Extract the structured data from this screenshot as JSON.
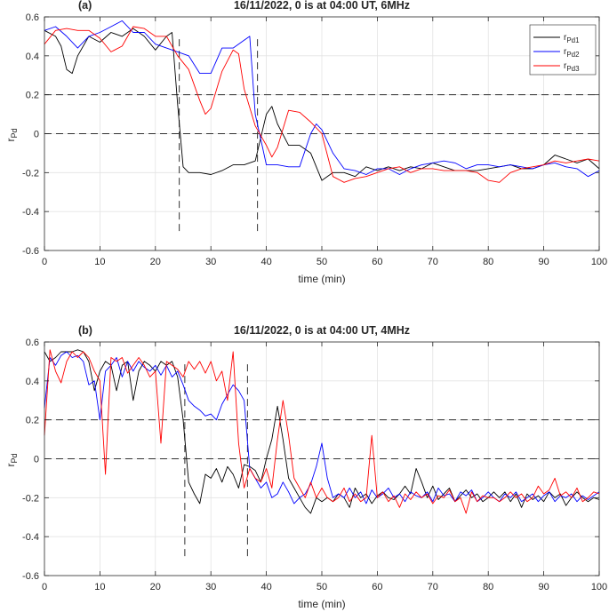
{
  "figure": {
    "panel_tags": [
      "(a)",
      "(b)"
    ]
  },
  "chart_data": [
    {
      "type": "line",
      "title": "16/11/2022, 0 is at 04:00 UT, 6MHz",
      "xlabel": "time (min)",
      "ylabel_main": "r",
      "ylabel_sub": "Pd",
      "xlim": [
        0,
        100
      ],
      "ylim": [
        -0.6,
        0.6
      ],
      "xticks": [
        0,
        10,
        20,
        30,
        40,
        50,
        60,
        70,
        80,
        90,
        100
      ],
      "yticks": [
        -0.6,
        -0.4,
        -0.2,
        0,
        0.2,
        0.4,
        0.6
      ],
      "grid": true,
      "legend": "top-right",
      "legend_entries": [
        {
          "main": "r",
          "sub": "Pd1",
          "color": "#000000"
        },
        {
          "main": "r",
          "sub": "Pd2",
          "color": "#0000ff"
        },
        {
          "main": "r",
          "sub": "Pd3",
          "color": "#ff0000"
        }
      ],
      "hlines": [
        0.2,
        0.0
      ],
      "vlines": [
        {
          "x": 24.3,
          "y": [
            -0.5,
            0.5
          ]
        },
        {
          "x": 38.4,
          "y": [
            -0.5,
            0.5
          ]
        }
      ],
      "series": [
        {
          "name": "Pd1",
          "color": "#000000",
          "x": [
            0,
            2,
            3,
            4,
            5,
            6,
            8,
            10,
            12,
            14,
            16,
            18,
            20,
            22,
            23,
            24,
            25,
            26,
            28,
            30,
            32,
            34,
            36,
            38,
            40,
            41,
            42,
            44,
            46,
            48,
            50,
            52,
            54,
            56,
            58,
            60,
            62,
            64,
            66,
            68,
            70,
            72,
            74,
            76,
            78,
            80,
            82,
            84,
            86,
            88,
            90,
            92,
            94,
            96,
            98,
            100
          ],
          "y": [
            0.53,
            0.5,
            0.45,
            0.33,
            0.31,
            0.4,
            0.5,
            0.47,
            0.52,
            0.5,
            0.54,
            0.5,
            0.43,
            0.5,
            0.52,
            0.15,
            -0.17,
            -0.2,
            -0.2,
            -0.21,
            -0.19,
            -0.16,
            -0.16,
            -0.14,
            0.1,
            0.14,
            0.05,
            -0.06,
            -0.06,
            -0.1,
            -0.24,
            -0.2,
            -0.2,
            -0.22,
            -0.17,
            -0.19,
            -0.17,
            -0.19,
            -0.17,
            -0.18,
            -0.15,
            -0.17,
            -0.19,
            -0.19,
            -0.19,
            -0.18,
            -0.17,
            -0.16,
            -0.18,
            -0.18,
            -0.16,
            -0.11,
            -0.13,
            -0.15,
            -0.13,
            -0.18
          ]
        },
        {
          "name": "Pd2",
          "color": "#0000ff",
          "x": [
            0,
            2,
            4,
            6,
            8,
            10,
            12,
            14,
            16,
            18,
            20,
            22,
            24,
            26,
            28,
            30,
            32,
            34,
            36,
            37,
            38,
            39,
            40,
            42,
            44,
            46,
            48,
            49,
            50,
            52,
            54,
            56,
            58,
            60,
            62,
            64,
            66,
            68,
            70,
            72,
            74,
            76,
            78,
            80,
            82,
            84,
            86,
            88,
            90,
            92,
            94,
            96,
            98,
            100
          ],
          "y": [
            0.53,
            0.55,
            0.5,
            0.44,
            0.5,
            0.52,
            0.55,
            0.58,
            0.52,
            0.52,
            0.46,
            0.44,
            0.42,
            0.4,
            0.31,
            0.31,
            0.44,
            0.44,
            0.48,
            0.5,
            0.1,
            -0.03,
            -0.16,
            -0.16,
            -0.17,
            -0.17,
            0.0,
            0.05,
            0.02,
            -0.1,
            -0.18,
            -0.19,
            -0.21,
            -0.18,
            -0.18,
            -0.21,
            -0.18,
            -0.16,
            -0.15,
            -0.14,
            -0.15,
            -0.18,
            -0.16,
            -0.16,
            -0.17,
            -0.16,
            -0.17,
            -0.18,
            -0.16,
            -0.15,
            -0.17,
            -0.18,
            -0.22,
            -0.19
          ]
        },
        {
          "name": "Pd3",
          "color": "#ff0000",
          "x": [
            0,
            2,
            4,
            6,
            8,
            10,
            12,
            14,
            16,
            18,
            20,
            22,
            24,
            26,
            28,
            29,
            30,
            32,
            34,
            35,
            36,
            38,
            39,
            40,
            41,
            42,
            44,
            46,
            48,
            50,
            52,
            54,
            56,
            58,
            60,
            62,
            64,
            66,
            68,
            70,
            72,
            74,
            76,
            78,
            80,
            82,
            84,
            86,
            88,
            90,
            92,
            94,
            96,
            98,
            100
          ],
          "y": [
            0.46,
            0.53,
            0.54,
            0.53,
            0.53,
            0.49,
            0.42,
            0.45,
            0.55,
            0.54,
            0.5,
            0.5,
            0.4,
            0.33,
            0.17,
            0.1,
            0.13,
            0.32,
            0.43,
            0.41,
            0.23,
            0.04,
            -0.01,
            -0.06,
            -0.12,
            -0.07,
            0.12,
            0.11,
            0.06,
            0.0,
            -0.22,
            -0.25,
            -0.23,
            -0.22,
            -0.2,
            -0.18,
            -0.17,
            -0.2,
            -0.18,
            -0.18,
            -0.19,
            -0.19,
            -0.19,
            -0.2,
            -0.24,
            -0.25,
            -0.2,
            -0.18,
            -0.17,
            -0.16,
            -0.14,
            -0.15,
            -0.14,
            -0.13,
            -0.14
          ]
        }
      ]
    },
    {
      "type": "line",
      "title": "16/11/2022, 0 is at 04:00 UT, 4MHz",
      "xlabel": "time (min)",
      "ylabel_main": "r",
      "ylabel_sub": "Pd",
      "xlim": [
        0,
        100
      ],
      "ylim": [
        -0.6,
        0.6
      ],
      "xticks": [
        0,
        10,
        20,
        30,
        40,
        50,
        60,
        70,
        80,
        90,
        100
      ],
      "yticks": [
        -0.6,
        -0.4,
        -0.2,
        0,
        0.2,
        0.4,
        0.6
      ],
      "grid": true,
      "hlines": [
        0.2,
        0.0
      ],
      "vlines": [
        {
          "x": 25.3,
          "y": [
            -0.5,
            0.5
          ]
        },
        {
          "x": 36.6,
          "y": [
            -0.5,
            0.5
          ]
        }
      ],
      "series": [
        {
          "name": "Pd1",
          "color": "#000000",
          "x": [
            0,
            1,
            2,
            3,
            4,
            5,
            6,
            7,
            8,
            9,
            10,
            11,
            12,
            13,
            14,
            15,
            16,
            17,
            18,
            19,
            20,
            21,
            22,
            23,
            24,
            25,
            26,
            27,
            28,
            29,
            30,
            31,
            32,
            33,
            34,
            35,
            36,
            37,
            38,
            39,
            40,
            41,
            42,
            43,
            44,
            45,
            46,
            47,
            48,
            49,
            50,
            51,
            52,
            53,
            54,
            55,
            56,
            57,
            58,
            59,
            60,
            61,
            62,
            63,
            64,
            65,
            66,
            67,
            68,
            69,
            70,
            71,
            72,
            73,
            74,
            75,
            76,
            77,
            78,
            79,
            80,
            81,
            82,
            83,
            84,
            85,
            86,
            87,
            88,
            89,
            90,
            91,
            92,
            93,
            94,
            95,
            96,
            97,
            98,
            99,
            100
          ],
          "y": [
            0.55,
            0.5,
            0.52,
            0.55,
            0.55,
            0.55,
            0.56,
            0.55,
            0.5,
            0.35,
            0.45,
            0.5,
            0.48,
            0.35,
            0.48,
            0.5,
            0.3,
            0.45,
            0.5,
            0.48,
            0.45,
            0.5,
            0.48,
            0.5,
            0.42,
            0.2,
            -0.12,
            -0.18,
            -0.23,
            -0.08,
            -0.1,
            -0.05,
            -0.12,
            -0.04,
            -0.08,
            -0.15,
            -0.03,
            -0.04,
            -0.06,
            -0.12,
            0.0,
            0.1,
            0.27,
            0.1,
            -0.1,
            -0.15,
            -0.2,
            -0.25,
            -0.28,
            -0.2,
            -0.22,
            -0.2,
            -0.22,
            -0.18,
            -0.2,
            -0.25,
            -0.15,
            -0.2,
            -0.18,
            -0.23,
            -0.19,
            -0.17,
            -0.2,
            -0.21,
            -0.18,
            -0.14,
            -0.18,
            -0.05,
            -0.12,
            -0.2,
            -0.14,
            -0.21,
            -0.18,
            -0.15,
            -0.22,
            -0.19,
            -0.16,
            -0.2,
            -0.18,
            -0.22,
            -0.2,
            -0.17,
            -0.2,
            -0.17,
            -0.22,
            -0.18,
            -0.25,
            -0.18,
            -0.21,
            -0.19,
            -0.22,
            -0.17,
            -0.2,
            -0.18,
            -0.24,
            -0.2,
            -0.17,
            -0.2,
            -0.22,
            -0.2,
            -0.21
          ]
        },
        {
          "name": "Pd2",
          "color": "#0000ff",
          "x": [
            0,
            1,
            2,
            3,
            4,
            5,
            6,
            7,
            8,
            9,
            10,
            11,
            12,
            13,
            14,
            15,
            16,
            17,
            18,
            19,
            20,
            21,
            22,
            23,
            24,
            25,
            26,
            27,
            28,
            29,
            30,
            31,
            32,
            33,
            34,
            35,
            36,
            37,
            38,
            39,
            40,
            41,
            42,
            43,
            44,
            45,
            46,
            47,
            48,
            49,
            50,
            51,
            52,
            53,
            54,
            55,
            56,
            57,
            58,
            59,
            60,
            61,
            62,
            63,
            64,
            65,
            66,
            67,
            68,
            69,
            70,
            71,
            72,
            73,
            74,
            75,
            76,
            77,
            78,
            79,
            80,
            81,
            82,
            83,
            84,
            85,
            86,
            87,
            88,
            89,
            90,
            91,
            92,
            93,
            94,
            95,
            96,
            97,
            98,
            99,
            100
          ],
          "y": [
            0.26,
            0.52,
            0.48,
            0.53,
            0.55,
            0.52,
            0.53,
            0.5,
            0.38,
            0.4,
            0.2,
            0.45,
            0.48,
            0.52,
            0.42,
            0.5,
            0.45,
            0.5,
            0.47,
            0.45,
            0.48,
            0.43,
            0.48,
            0.42,
            0.45,
            0.38,
            0.3,
            0.27,
            0.25,
            0.22,
            0.23,
            0.2,
            0.28,
            0.33,
            0.38,
            0.35,
            0.3,
            -0.05,
            -0.1,
            -0.15,
            -0.12,
            -0.2,
            -0.18,
            -0.12,
            -0.17,
            -0.23,
            -0.2,
            -0.18,
            -0.13,
            -0.04,
            0.08,
            -0.1,
            -0.2,
            -0.18,
            -0.2,
            -0.15,
            -0.2,
            -0.17,
            -0.23,
            -0.16,
            -0.2,
            -0.18,
            -0.15,
            -0.2,
            -0.18,
            -0.22,
            -0.17,
            -0.19,
            -0.2,
            -0.17,
            -0.22,
            -0.15,
            -0.19,
            -0.18,
            -0.22,
            -0.17,
            -0.19,
            -0.16,
            -0.22,
            -0.2,
            -0.17,
            -0.2,
            -0.22,
            -0.18,
            -0.2,
            -0.17,
            -0.22,
            -0.2,
            -0.18,
            -0.22,
            -0.19,
            -0.17,
            -0.22,
            -0.19,
            -0.2,
            -0.18,
            -0.22,
            -0.19,
            -0.21,
            -0.19,
            -0.17
          ]
        },
        {
          "name": "Pd3",
          "color": "#ff0000",
          "x": [
            0,
            1,
            2,
            3,
            4,
            5,
            6,
            7,
            8,
            9,
            10,
            11,
            12,
            13,
            14,
            15,
            16,
            17,
            18,
            19,
            20,
            21,
            22,
            23,
            24,
            25,
            26,
            27,
            28,
            29,
            30,
            31,
            32,
            33,
            34,
            35,
            36,
            37,
            38,
            39,
            40,
            41,
            42,
            43,
            44,
            45,
            46,
            47,
            48,
            49,
            50,
            51,
            52,
            53,
            54,
            55,
            56,
            57,
            58,
            59,
            60,
            61,
            62,
            63,
            64,
            65,
            66,
            67,
            68,
            69,
            70,
            71,
            72,
            73,
            74,
            75,
            76,
            77,
            78,
            79,
            80,
            81,
            82,
            83,
            84,
            85,
            86,
            87,
            88,
            89,
            90,
            91,
            92,
            93,
            94,
            95,
            96,
            97,
            98,
            99,
            100
          ],
          "y": [
            0.12,
            0.56,
            0.45,
            0.39,
            0.5,
            0.55,
            0.52,
            0.55,
            0.52,
            0.45,
            0.4,
            -0.08,
            0.52,
            0.5,
            0.52,
            0.44,
            0.48,
            0.52,
            0.48,
            0.42,
            0.45,
            0.08,
            0.5,
            0.48,
            0.46,
            0.42,
            0.5,
            0.46,
            0.5,
            0.44,
            0.5,
            0.4,
            0.45,
            0.3,
            0.55,
            0.08,
            -0.15,
            -0.05,
            -0.1,
            -0.12,
            -0.05,
            -0.15,
            0.1,
            0.3,
            0.12,
            -0.1,
            -0.15,
            -0.2,
            -0.12,
            -0.2,
            -0.15,
            -0.2,
            -0.22,
            -0.2,
            -0.15,
            -0.22,
            -0.18,
            -0.22,
            -0.2,
            0.12,
            -0.2,
            -0.17,
            -0.22,
            -0.19,
            -0.25,
            -0.18,
            -0.21,
            -0.17,
            -0.2,
            -0.18,
            -0.23,
            -0.19,
            -0.2,
            -0.16,
            -0.22,
            -0.2,
            -0.28,
            -0.17,
            -0.22,
            -0.19,
            -0.2,
            -0.2,
            -0.22,
            -0.2,
            -0.17,
            -0.2,
            -0.18,
            -0.22,
            -0.2,
            -0.14,
            -0.18,
            -0.16,
            -0.1,
            -0.19,
            -0.17,
            -0.2,
            -0.15,
            -0.22,
            -0.2,
            -0.17,
            -0.18
          ]
        }
      ]
    }
  ]
}
